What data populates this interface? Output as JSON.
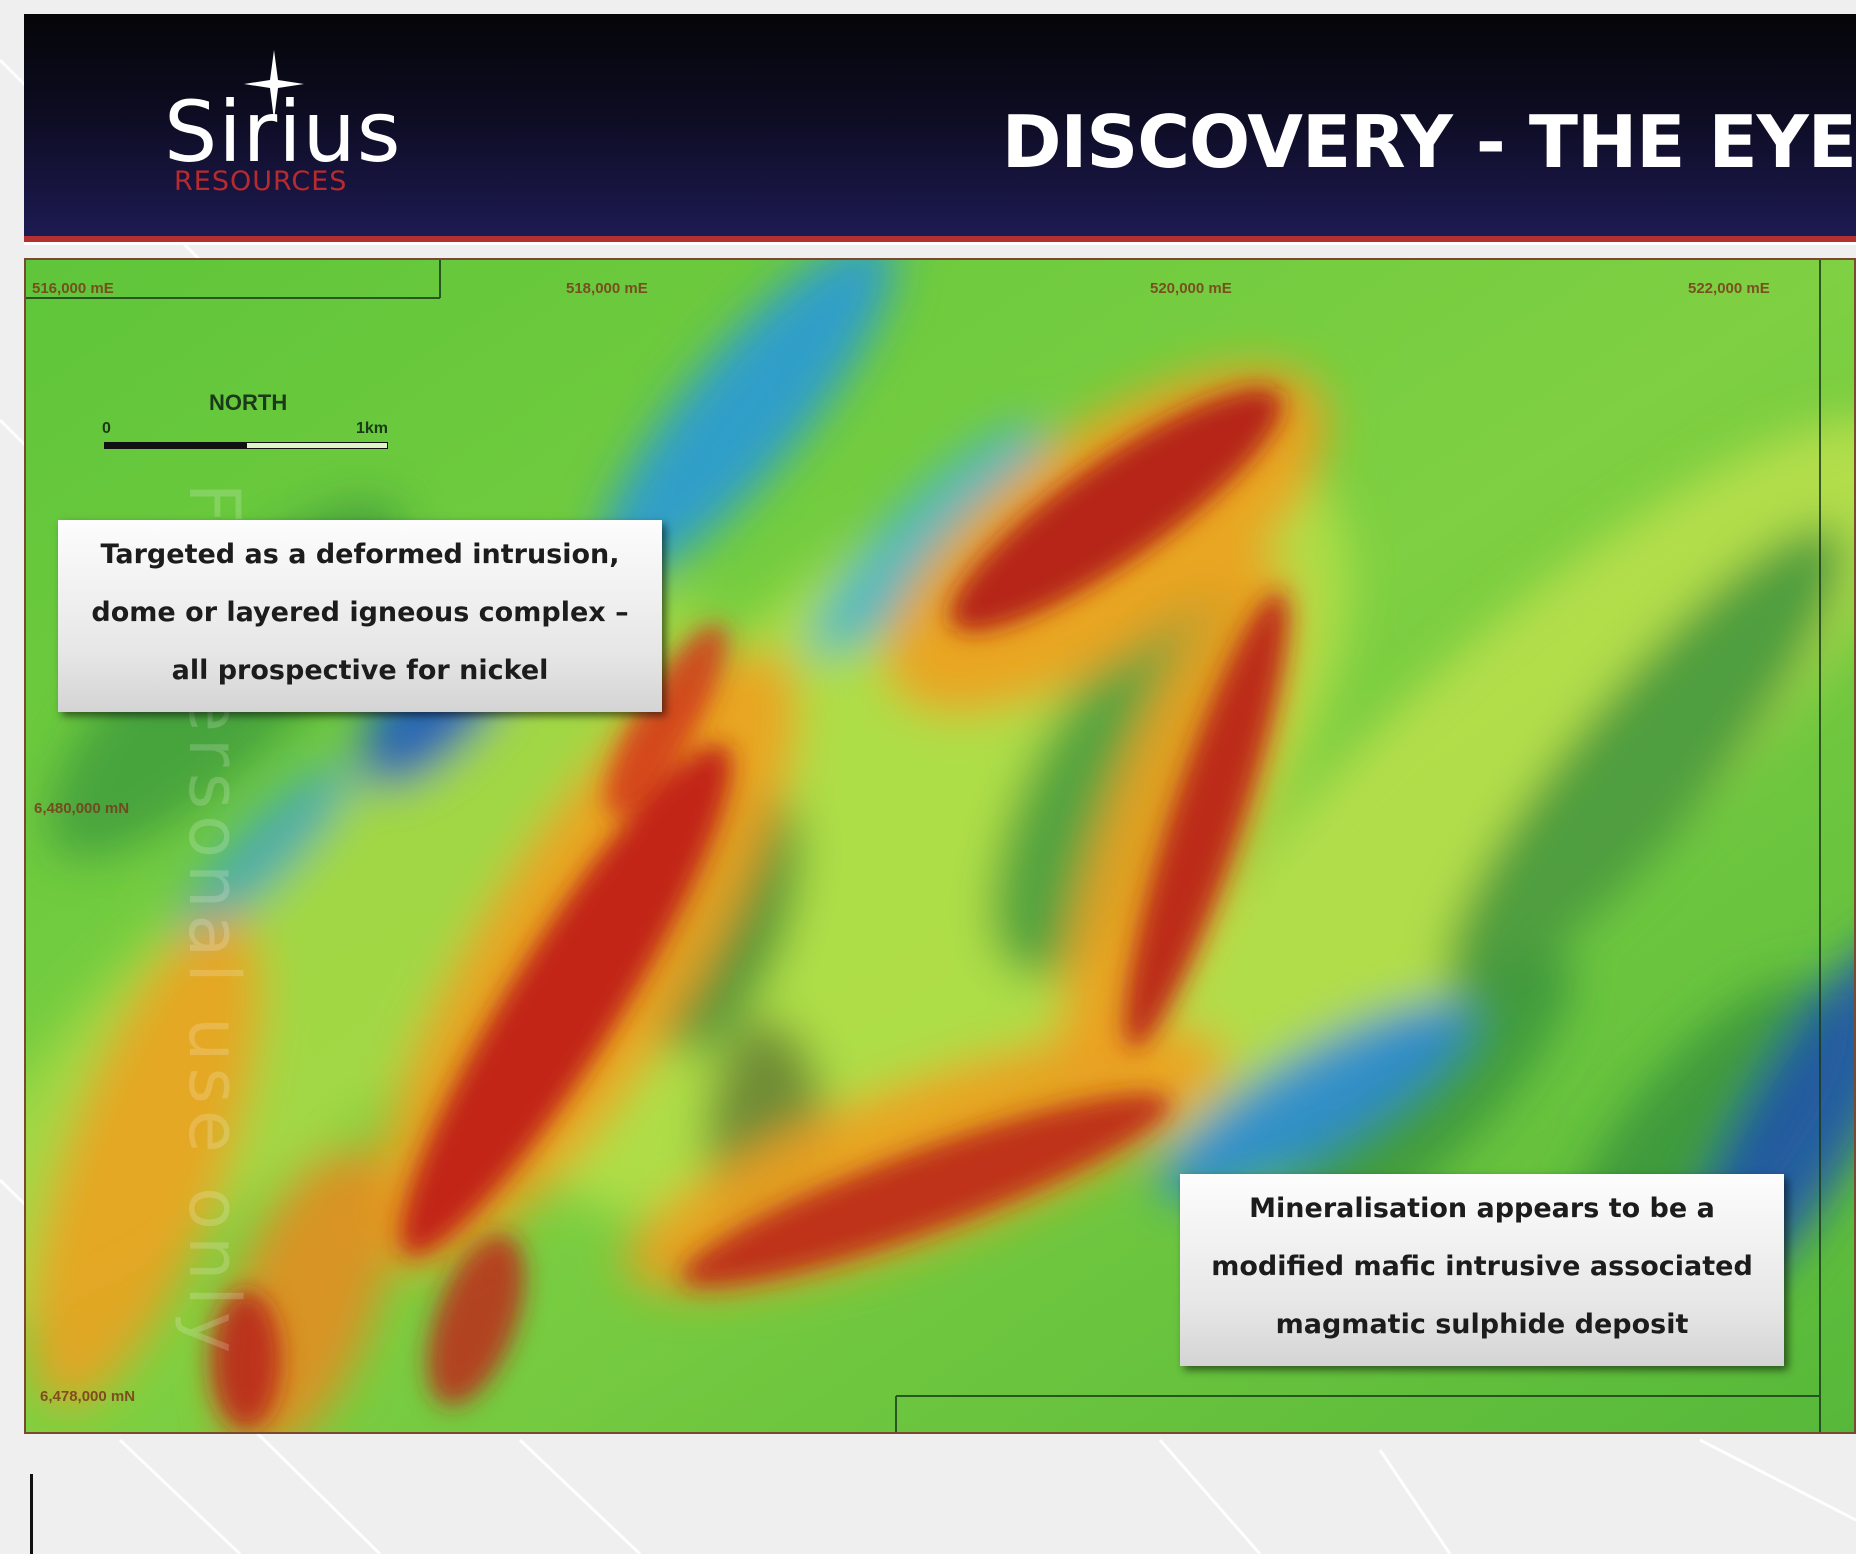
{
  "header": {
    "logo_name": "Sirius",
    "logo_sub": "RESOURCES",
    "title": "DISCOVERY - THE EYE"
  },
  "map": {
    "easting_labels": [
      "516,000 mE",
      "518,000 mE",
      "520,000 mE",
      "522,000 mE"
    ],
    "northing_labels": [
      "6,480,000 mN",
      "6,478,000 mN"
    ],
    "scale": {
      "direction": "NORTH",
      "start": "0",
      "end": "1km"
    },
    "watermark": "For personal use only"
  },
  "callouts": {
    "intrusion": [
      "Targeted as a deformed intrusion,",
      "dome or layered igneous complex –",
      "all prospective for nickel"
    ],
    "mineralisation": [
      "Mineralisation appears to be a",
      "modified mafic intrusive associated",
      "magmatic sulphide deposit"
    ]
  },
  "colors": {
    "header_dark": "#0d0c22",
    "header_blue": "#1d1a52",
    "brand_red": "#b72a2e",
    "map_green": "#4cc23a",
    "map_red": "#c0201a",
    "map_blue": "#2a8ad6"
  }
}
